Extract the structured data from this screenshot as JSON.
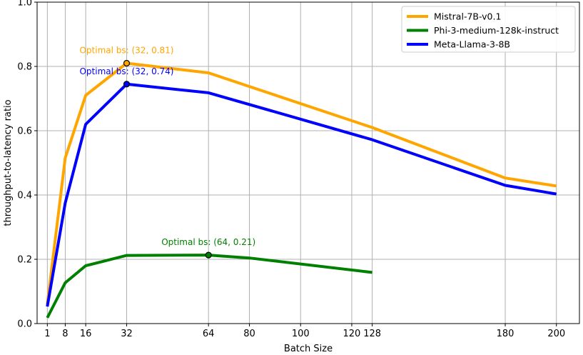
{
  "chart_data": {
    "type": "line",
    "title": "",
    "xlabel": "Batch Size",
    "ylabel": "throughput-to-latency ratio",
    "xlim": [
      -3,
      209
    ],
    "ylim": [
      0.0,
      1.0
    ],
    "xticks": [
      1,
      8,
      16,
      32,
      64,
      80,
      100,
      120,
      128,
      180,
      200
    ],
    "yticks": [
      0.0,
      0.2,
      0.4,
      0.6,
      0.8,
      1.0
    ],
    "ytick_labels": [
      "0.0",
      "0.2",
      "0.4",
      "0.6",
      "0.8",
      "1.0"
    ],
    "grid": true,
    "legend_position": "top-right",
    "series": [
      {
        "name": "Mistral-7B-v0.1",
        "color": "#ffa500",
        "x": [
          1,
          8,
          16,
          32,
          64,
          128,
          180,
          200
        ],
        "y": [
          0.06,
          0.515,
          0.71,
          0.81,
          0.78,
          0.61,
          0.453,
          0.428
        ]
      },
      {
        "name": "Phi-3-medium-128k-instruct",
        "color": "#008000",
        "x": [
          1,
          8,
          16,
          32,
          64,
          80,
          128
        ],
        "y": [
          0.018,
          0.127,
          0.18,
          0.212,
          0.213,
          0.204,
          0.159
        ]
      },
      {
        "name": "Meta-Llama-3-8B",
        "color": "#0000ff",
        "x": [
          1,
          8,
          16,
          32,
          64,
          128,
          180,
          200
        ],
        "y": [
          0.053,
          0.375,
          0.62,
          0.745,
          0.718,
          0.572,
          0.43,
          0.403
        ]
      }
    ],
    "annotations": [
      {
        "text": "Optimal bs: (32, 0.81)",
        "x": 32,
        "y": 0.81,
        "color": "#ffa500"
      },
      {
        "text": "Optimal bs: (32, 0.74)",
        "x": 32,
        "y": 0.745,
        "color": "#0000ff"
      },
      {
        "text": "Optimal bs: (64, 0.21)",
        "x": 64,
        "y": 0.213,
        "color": "#008000"
      }
    ]
  }
}
